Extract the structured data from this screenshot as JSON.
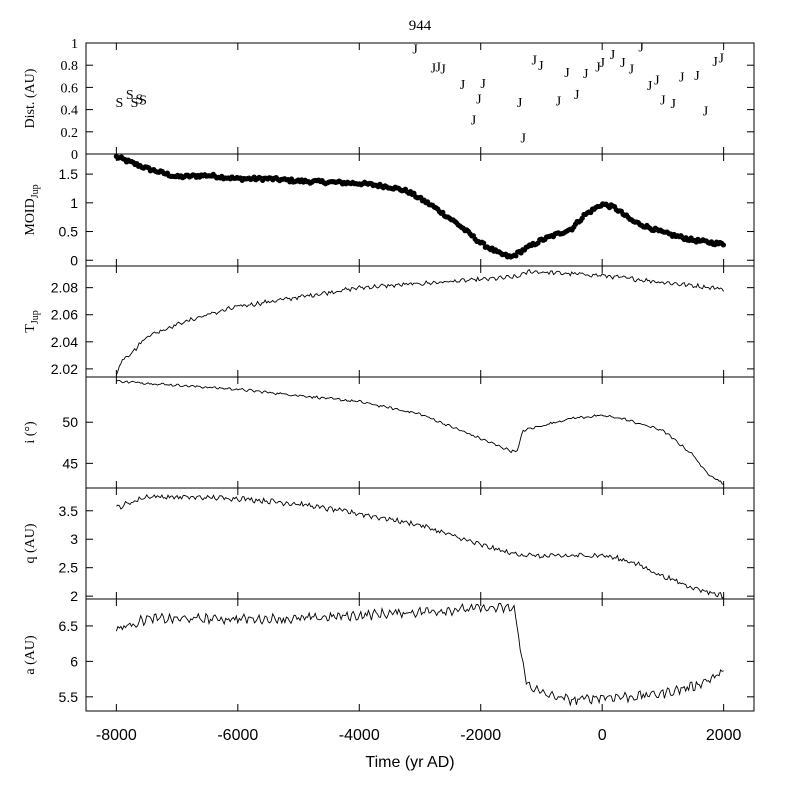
{
  "figure": {
    "title": "944",
    "xlabel": "Time (yr AD)",
    "xlim": [
      -8500,
      2500
    ],
    "xticks": [
      -8000,
      -6000,
      -4000,
      -2000,
      0,
      2000
    ]
  },
  "chart_data": [
    {
      "id": "dist",
      "type": "scatter",
      "ylabel": "Dist. (AU)",
      "ylim": [
        0,
        1
      ],
      "yticks": [
        0,
        0.2,
        0.4,
        0.6,
        0.8,
        1
      ],
      "ytick_labels": [
        "0",
        "0.2",
        "0.4",
        "0.6",
        "0.8",
        "1"
      ],
      "marker": "letter",
      "series": [
        {
          "name": "S",
          "points": [
            [
              -7950,
              0.47
            ],
            [
              -7780,
              0.54
            ],
            [
              -7700,
              0.47
            ],
            [
              -7620,
              0.5
            ],
            [
              -7560,
              0.49
            ]
          ]
        },
        {
          "name": "J",
          "points": [
            [
              -3080,
              0.95
            ],
            [
              -2780,
              0.78
            ],
            [
              -2700,
              0.79
            ],
            [
              -2620,
              0.77
            ],
            [
              -2300,
              0.63
            ],
            [
              -2120,
              0.31
            ],
            [
              -2030,
              0.5
            ],
            [
              -1960,
              0.64
            ],
            [
              -1360,
              0.47
            ],
            [
              -1300,
              0.15
            ],
            [
              -1120,
              0.85
            ],
            [
              -1010,
              0.8
            ],
            [
              -720,
              0.48
            ],
            [
              -580,
              0.74
            ],
            [
              -420,
              0.54
            ],
            [
              -270,
              0.73
            ],
            [
              -70,
              0.79
            ],
            [
              0,
              0.83
            ],
            [
              170,
              0.9
            ],
            [
              340,
              0.83
            ],
            [
              480,
              0.77
            ],
            [
              640,
              0.97
            ],
            [
              780,
              0.62
            ],
            [
              900,
              0.67
            ],
            [
              1000,
              0.49
            ],
            [
              1170,
              0.46
            ],
            [
              1310,
              0.7
            ],
            [
              1560,
              0.71
            ],
            [
              1700,
              0.39
            ],
            [
              1860,
              0.84
            ],
            [
              1960,
              0.87
            ]
          ]
        }
      ]
    },
    {
      "id": "moid",
      "type": "scatter",
      "ylabel": "MOID_Jup",
      "ylim": [
        -0.1,
        1.85
      ],
      "yticks": [
        0,
        0.5,
        1,
        1.5
      ],
      "ytick_labels": [
        "0",
        "0.5",
        "1",
        "1.5"
      ],
      "marker": "dot",
      "t": [
        -8000,
        -7500,
        -7000,
        -6500,
        -6000,
        -5500,
        -5000,
        -4500,
        -4000,
        -3500,
        -3200,
        -2800,
        -2400,
        -2000,
        -1700,
        -1500,
        -1300,
        -1000,
        -500,
        -300,
        0,
        200,
        500,
        1000,
        1500,
        2000
      ],
      "values": [
        1.8,
        1.6,
        1.45,
        1.48,
        1.42,
        1.42,
        1.38,
        1.36,
        1.34,
        1.28,
        1.2,
        0.95,
        0.65,
        0.3,
        0.12,
        0.05,
        0.18,
        0.35,
        0.55,
        0.78,
        0.98,
        0.92,
        0.68,
        0.48,
        0.35,
        0.28
      ]
    },
    {
      "id": "tjup",
      "type": "line",
      "ylabel": "T_Jup",
      "ylim": [
        2.014,
        2.096
      ],
      "yticks": [
        2.02,
        2.04,
        2.06,
        2.08
      ],
      "ytick_labels": [
        "2.02",
        "2.04",
        "2.06",
        "2.08"
      ],
      "t": [
        -8000,
        -7900,
        -7700,
        -7500,
        -7000,
        -6500,
        -6000,
        -5000,
        -4000,
        -3000,
        -2000,
        -1400,
        -1200,
        0,
        1000,
        2000
      ],
      "values": [
        2.016,
        2.027,
        2.034,
        2.044,
        2.053,
        2.06,
        2.066,
        2.073,
        2.08,
        2.083,
        2.086,
        2.088,
        2.092,
        2.089,
        2.084,
        2.079
      ],
      "noise": 0.0012
    },
    {
      "id": "inc",
      "type": "line",
      "ylabel": "i (°)",
      "ylim": [
        42,
        55.5
      ],
      "yticks": [
        45,
        50
      ],
      "ytick_labels": [
        "45",
        "50"
      ],
      "t": [
        -8000,
        -6000,
        -4000,
        -3000,
        -2000,
        -1500,
        -1400,
        -1300,
        -500,
        0,
        300,
        1000,
        1500,
        1700,
        2000
      ],
      "values": [
        55,
        54,
        52.5,
        51,
        48,
        46.5,
        46.5,
        49,
        50.5,
        50.8,
        50.5,
        49,
        46,
        44,
        42.5
      ],
      "noise": 0.12
    },
    {
      "id": "q",
      "type": "line",
      "ylabel": "q (AU)",
      "ylim": [
        1.95,
        3.9
      ],
      "yticks": [
        2,
        2.5,
        3,
        3.5
      ],
      "ytick_labels": [
        "2",
        "2.5",
        "3",
        "3.5"
      ],
      "t": [
        -8000,
        -7500,
        -6000,
        -5000,
        -4000,
        -3000,
        -2000,
        -1500,
        -1000,
        0,
        500,
        1000,
        1500,
        2000
      ],
      "values": [
        3.55,
        3.75,
        3.72,
        3.62,
        3.45,
        3.25,
        2.9,
        2.75,
        2.7,
        2.72,
        2.6,
        2.35,
        2.15,
        2.0
      ],
      "noise": 0.035
    },
    {
      "id": "a",
      "type": "line",
      "ylabel": "a (AU)",
      "ylim": [
        5.3,
        6.88
      ],
      "yticks": [
        5.5,
        6,
        6.5
      ],
      "ytick_labels": [
        "5.5",
        "6",
        "6.5"
      ],
      "t": [
        -8000,
        -7500,
        -6000,
        -5000,
        -4000,
        -3000,
        -2000,
        -1450,
        -1350,
        -1250,
        -1000,
        -500,
        0,
        500,
        1000,
        1500,
        1900,
        2000
      ],
      "values": [
        6.45,
        6.6,
        6.6,
        6.6,
        6.65,
        6.7,
        6.75,
        6.75,
        6.2,
        5.7,
        5.55,
        5.45,
        5.5,
        5.5,
        5.55,
        5.65,
        5.8,
        5.85
      ],
      "noise": 0.05
    }
  ]
}
